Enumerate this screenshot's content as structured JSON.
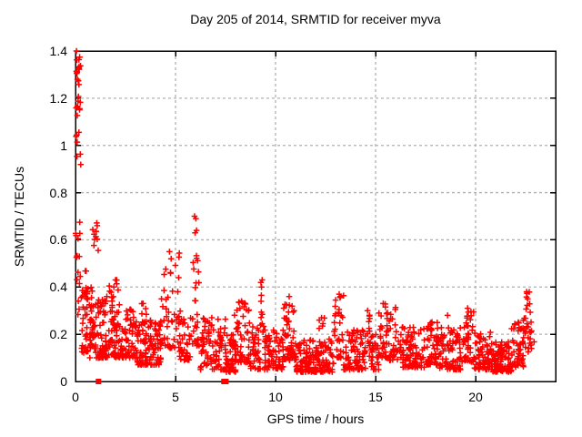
{
  "colors": {
    "background": "#ffffff",
    "marker": "#ff0000",
    "axis": "#000000",
    "grid": "#b0b0b0",
    "text": "#000000"
  },
  "chart_data": {
    "type": "scatter",
    "title": "Day 205 of 2014, SRMTID for receiver myva",
    "xlabel": "GPS time / hours",
    "ylabel": "SRMTID / TECUs",
    "xlim": [
      0,
      24
    ],
    "ylim": [
      0,
      1.4
    ],
    "grid": true,
    "legend": "none",
    "marker": {
      "shape": "plus",
      "color": "#ff0000",
      "size": 7
    },
    "xticks": [
      {
        "v": 0,
        "label": "0"
      },
      {
        "v": 5,
        "label": "5"
      },
      {
        "v": 10,
        "label": "10"
      },
      {
        "v": 15,
        "label": "15"
      },
      {
        "v": 20,
        "label": "20"
      }
    ],
    "yticks": [
      {
        "v": 0,
        "label": "0"
      },
      {
        "v": 0.2,
        "label": "0.2"
      },
      {
        "v": 0.4,
        "label": "0.4"
      },
      {
        "v": 0.6,
        "label": "0.6"
      },
      {
        "v": 0.8,
        "label": "0.8"
      },
      {
        "v": 1,
        "label": "1"
      },
      {
        "v": 1.2,
        "label": "1.2"
      },
      {
        "v": 1.4,
        "label": "1.4"
      }
    ],
    "zero_value_squares_x": [
      1.15,
      7.42,
      7.52
    ],
    "peak_points": [
      [
        0.05,
        1.4
      ],
      [
        0.08,
        1.31
      ],
      [
        0.1,
        1.28
      ],
      [
        5.95,
        0.7
      ],
      [
        6.02,
        0.69
      ],
      [
        6.05,
        0.64
      ],
      [
        5.98,
        0.63
      ],
      [
        4.7,
        0.55
      ],
      [
        4.78,
        0.52
      ],
      [
        9.33,
        0.43
      ],
      [
        9.3,
        0.4
      ],
      [
        13.18,
        0.37
      ],
      [
        13.24,
        0.36
      ],
      [
        10.68,
        0.36
      ],
      [
        22.55,
        0.38
      ],
      [
        22.6,
        0.35
      ],
      [
        8.3,
        0.34
      ],
      [
        15.38,
        0.33
      ],
      [
        19.6,
        0.31
      ],
      [
        2.0,
        0.43
      ],
      [
        1.92,
        0.4
      ],
      [
        14.6,
        0.3
      ],
      [
        3.38,
        0.33
      ],
      [
        12.3,
        0.27
      ],
      [
        18.6,
        0.28
      ]
    ],
    "density_bins": [
      {
        "x": [
          0.0,
          0.25
        ],
        "y": [
          0.95,
          1.4
        ],
        "n": 26,
        "dist": "uniform"
      },
      {
        "x": [
          0.0,
          0.3
        ],
        "y": [
          0.5,
          0.93
        ],
        "n": 9,
        "dist": "uniform"
      },
      {
        "x": [
          0.05,
          0.65
        ],
        "y": [
          0.28,
          0.47
        ],
        "n": 18,
        "dist": "uniform"
      },
      {
        "x": [
          0.3,
          0.9
        ],
        "y": [
          0.12,
          0.4
        ],
        "n": 40,
        "dist": "low"
      },
      {
        "x": [
          0.85,
          1.15
        ],
        "y": [
          0.55,
          0.68
        ],
        "n": 11,
        "dist": "uniform"
      },
      {
        "x": [
          0.7,
          2.0
        ],
        "y": [
          0.1,
          0.36
        ],
        "n": 120,
        "dist": "low"
      },
      {
        "x": [
          1.6,
          2.2
        ],
        "y": [
          0.28,
          0.44
        ],
        "n": 10,
        "dist": "uniform"
      },
      {
        "x": [
          2.0,
          3.1
        ],
        "y": [
          0.1,
          0.31
        ],
        "n": 90,
        "dist": "low"
      },
      {
        "x": [
          3.1,
          4.3
        ],
        "y": [
          0.07,
          0.26
        ],
        "n": 110,
        "dist": "low"
      },
      {
        "x": [
          3.25,
          3.55
        ],
        "y": [
          0.22,
          0.33
        ],
        "n": 8,
        "dist": "uniform"
      },
      {
        "x": [
          4.3,
          5.2
        ],
        "y": [
          0.14,
          0.55
        ],
        "n": 45,
        "dist": "low"
      },
      {
        "x": [
          5.2,
          5.8
        ],
        "y": [
          0.09,
          0.3
        ],
        "n": 40,
        "dist": "low"
      },
      {
        "x": [
          5.85,
          6.25
        ],
        "y": [
          0.15,
          0.58
        ],
        "n": 26,
        "dist": "low"
      },
      {
        "x": [
          6.25,
          7.5
        ],
        "y": [
          0.05,
          0.27
        ],
        "n": 85,
        "dist": "low"
      },
      {
        "x": [
          7.5,
          8.0
        ],
        "y": [
          0.04,
          0.2
        ],
        "n": 45,
        "dist": "low"
      },
      {
        "x": [
          7.95,
          8.7
        ],
        "y": [
          0.08,
          0.34
        ],
        "n": 55,
        "dist": "low"
      },
      {
        "x": [
          8.7,
          9.25
        ],
        "y": [
          0.05,
          0.24
        ],
        "n": 40,
        "dist": "low"
      },
      {
        "x": [
          9.25,
          9.45
        ],
        "y": [
          0.18,
          0.43
        ],
        "n": 10,
        "dist": "uniform"
      },
      {
        "x": [
          9.45,
          10.4
        ],
        "y": [
          0.05,
          0.22
        ],
        "n": 70,
        "dist": "low"
      },
      {
        "x": [
          10.4,
          11.0
        ],
        "y": [
          0.09,
          0.35
        ],
        "n": 50,
        "dist": "low"
      },
      {
        "x": [
          11.0,
          12.9
        ],
        "y": [
          0.04,
          0.18
        ],
        "n": 150,
        "dist": "low"
      },
      {
        "x": [
          12.1,
          12.5
        ],
        "y": [
          0.12,
          0.27
        ],
        "n": 12,
        "dist": "low"
      },
      {
        "x": [
          12.9,
          13.4
        ],
        "y": [
          0.1,
          0.37
        ],
        "n": 32,
        "dist": "low"
      },
      {
        "x": [
          13.4,
          14.5
        ],
        "y": [
          0.05,
          0.22
        ],
        "n": 80,
        "dist": "low"
      },
      {
        "x": [
          14.5,
          14.75
        ],
        "y": [
          0.1,
          0.29
        ],
        "n": 12,
        "dist": "uniform"
      },
      {
        "x": [
          14.75,
          15.15
        ],
        "y": [
          0.05,
          0.2
        ],
        "n": 28,
        "dist": "low"
      },
      {
        "x": [
          15.15,
          15.55
        ],
        "y": [
          0.1,
          0.33
        ],
        "n": 25,
        "dist": "low"
      },
      {
        "x": [
          15.55,
          16.3
        ],
        "y": [
          0.09,
          0.33
        ],
        "n": 45,
        "dist": "low"
      },
      {
        "x": [
          16.3,
          17.5
        ],
        "y": [
          0.06,
          0.23
        ],
        "n": 90,
        "dist": "low"
      },
      {
        "x": [
          17.5,
          18.2
        ],
        "y": [
          0.07,
          0.26
        ],
        "n": 60,
        "dist": "low"
      },
      {
        "x": [
          18.2,
          19.3
        ],
        "y": [
          0.05,
          0.23
        ],
        "n": 80,
        "dist": "low"
      },
      {
        "x": [
          19.3,
          19.9
        ],
        "y": [
          0.08,
          0.31
        ],
        "n": 40,
        "dist": "low"
      },
      {
        "x": [
          19.9,
          20.8
        ],
        "y": [
          0.05,
          0.21
        ],
        "n": 65,
        "dist": "low"
      },
      {
        "x": [
          20.8,
          21.8
        ],
        "y": [
          0.04,
          0.17
        ],
        "n": 95,
        "dist": "low"
      },
      {
        "x": [
          21.8,
          22.4
        ],
        "y": [
          0.06,
          0.26
        ],
        "n": 50,
        "dist": "low"
      },
      {
        "x": [
          22.4,
          22.7
        ],
        "y": [
          0.12,
          0.38
        ],
        "n": 18,
        "dist": "uniform"
      },
      {
        "x": [
          22.65,
          22.95
        ],
        "y": [
          0.13,
          0.3
        ],
        "n": 10,
        "dist": "uniform"
      }
    ],
    "seed": 205
  }
}
